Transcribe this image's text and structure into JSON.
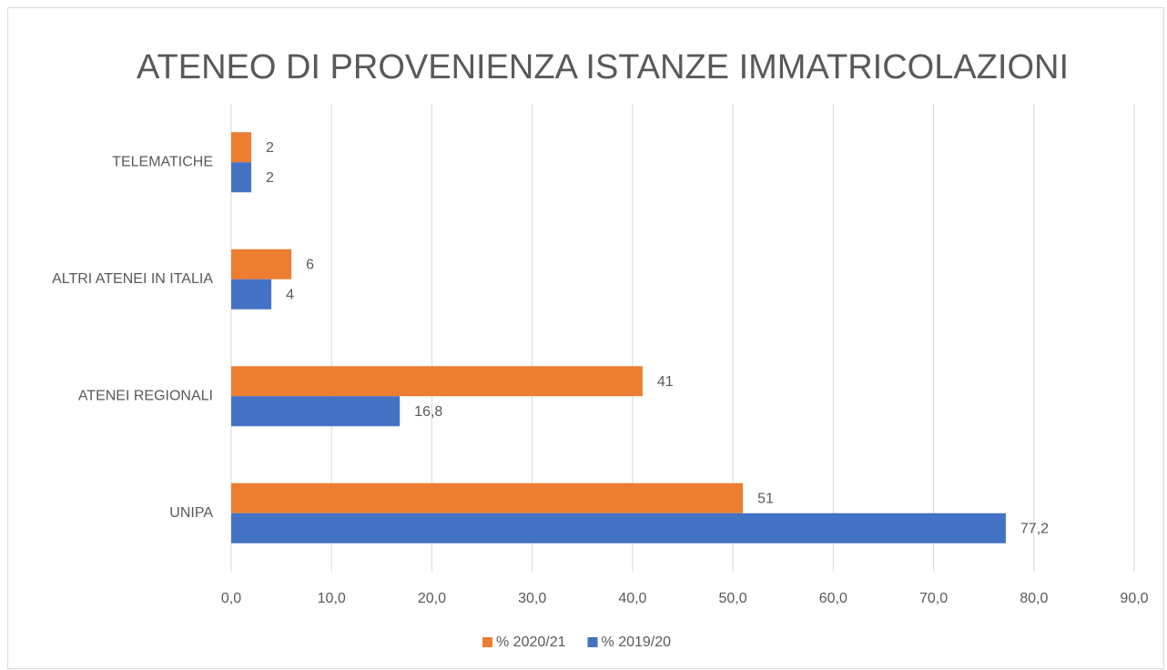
{
  "chart_data": {
    "type": "hbar",
    "title": "ATENEO DI PROVENIENZA ISTANZE IMMATRICOLAZIONI",
    "categories": [
      "UNIPA",
      "ATENEI REGIONALI",
      "ALTRI ATENEI IN ITALIA",
      "TELEMATICHE"
    ],
    "series": [
      {
        "name": "% 2020/21",
        "color": "#ed7d31",
        "values": [
          51,
          41,
          6,
          2
        ]
      },
      {
        "name": "% 2019/20",
        "color": "#4472c4",
        "values": [
          77.2,
          16.8,
          4,
          2
        ],
        "value_labels": [
          "77,2",
          "16,8",
          "4",
          "2"
        ]
      }
    ],
    "xlim": [
      0,
      90
    ],
    "xticks": [
      {
        "value": 0,
        "label": "0,0"
      },
      {
        "value": 10,
        "label": "10,0"
      },
      {
        "value": 20,
        "label": "20,0"
      },
      {
        "value": 30,
        "label": "30,0"
      },
      {
        "value": 40,
        "label": "40,0"
      },
      {
        "value": 50,
        "label": "50,0"
      },
      {
        "value": 60,
        "label": "60,0"
      },
      {
        "value": 70,
        "label": "70,0"
      },
      {
        "value": 80,
        "label": "80,0"
      },
      {
        "value": 90,
        "label": "90,0"
      }
    ],
    "grid": true,
    "legend": "bottom"
  }
}
